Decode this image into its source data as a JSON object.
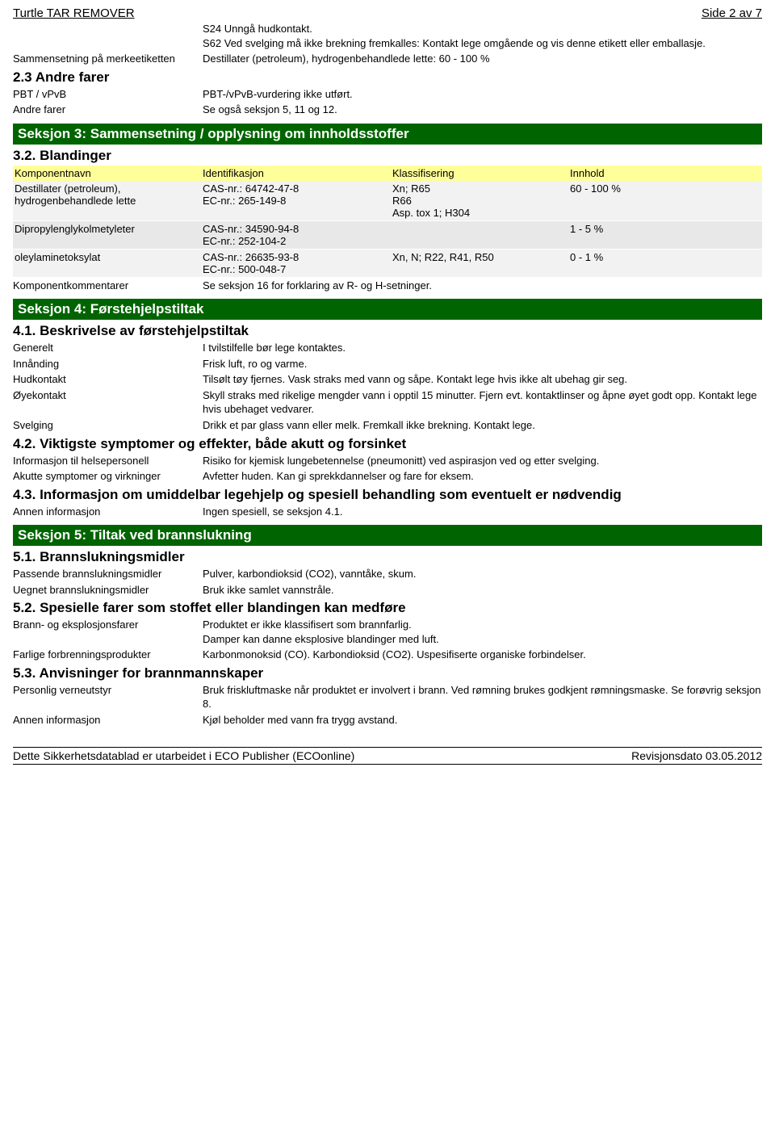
{
  "page_header": {
    "left": "Turtle TAR REMOVER",
    "right": "Side 2 av 7"
  },
  "safety_phrases": {
    "s24": "S24 Unngå hudkontakt.",
    "s62": "S62 Ved svelging må ikke brekning fremkalles: Kontakt lege omgående og vis denne etikett eller emballasje."
  },
  "composition_label": {
    "label": "Sammensetning på merkeetiketten",
    "value": "Destillater (petroleum), hydrogenbehandlede lette: 60 - 100 %"
  },
  "s2_3": {
    "title": "2.3 Andre farer",
    "rows": [
      {
        "label": "PBT / vPvB",
        "value": "PBT-/vPvB-vurdering ikke utført."
      },
      {
        "label": "Andre farer",
        "value": "Se også seksjon 5, 11 og 12."
      }
    ]
  },
  "section3": {
    "title": "Seksjon 3: Sammensetning / opplysning om innholdsstoffer",
    "sub": "3.2. Blandinger",
    "columns": [
      "Komponentnavn",
      "Identifikasjon",
      "Klassifisering",
      "Innhold"
    ],
    "rows": [
      {
        "name": "Destillater (petroleum), hydrogenbehandlede lette",
        "id": "CAS-nr.: 64742-47-8\nEC-nr.: 265-149-8",
        "class": "Xn; R65\nR66\nAsp. tox 1; H304",
        "content": "60 - 100 %"
      },
      {
        "name": "Dipropylenglykolmetyleter",
        "id": "CAS-nr.: 34590-94-8\nEC-nr.: 252-104-2",
        "class": "",
        "content": "1 - 5 %"
      },
      {
        "name": "oleylaminetoksylat",
        "id": "CAS-nr.: 26635-93-8\nEC-nr.: 500-048-7",
        "class": "Xn, N; R22, R41, R50",
        "content": "0 - 1 %"
      }
    ],
    "footer": {
      "label": "Komponentkommentarer",
      "value": "Se seksjon 16 for forklaring av R- og H-setninger."
    }
  },
  "section4": {
    "title": "Seksjon 4: Førstehjelpstiltak",
    "s4_1": {
      "title": "4.1. Beskrivelse av førstehjelpstiltak",
      "rows": [
        {
          "label": "Generelt",
          "value": "I tvilstilfelle bør lege kontaktes."
        },
        {
          "label": "Innånding",
          "value": "Frisk luft, ro og varme."
        },
        {
          "label": "Hudkontakt",
          "value": "Tilsølt tøy fjernes. Vask straks med vann og såpe. Kontakt lege hvis ikke alt ubehag gir seg."
        },
        {
          "label": "Øyekontakt",
          "value": "Skyll straks med rikelige mengder vann i opptil 15 minutter. Fjern evt. kontaktlinser og åpne øyet godt opp. Kontakt lege hvis ubehaget vedvarer."
        },
        {
          "label": "Svelging",
          "value": "Drikk et par glass vann eller melk. Fremkall ikke brekning. Kontakt lege."
        }
      ]
    },
    "s4_2": {
      "title": "4.2. Viktigste symptomer og effekter, både akutt og forsinket",
      "rows": [
        {
          "label": "Informasjon til helsepersonell",
          "value": "Risiko for kjemisk lungebetennelse (pneumonitt) ved aspirasjon ved og etter svelging."
        },
        {
          "label": "Akutte symptomer og virkninger",
          "value": "Avfetter huden. Kan gi sprekkdannelser og fare for eksem."
        }
      ]
    },
    "s4_3": {
      "title": "4.3. Informasjon om umiddelbar legehjelp og spesiell behandling som eventuelt er nødvendig",
      "rows": [
        {
          "label": "Annen informasjon",
          "value": "Ingen spesiell, se seksjon 4.1."
        }
      ]
    }
  },
  "section5": {
    "title": "Seksjon 5: Tiltak ved brannslukning",
    "s5_1": {
      "title": "5.1. Brannslukningsmidler",
      "rows": [
        {
          "label": "Passende brannslukningsmidler",
          "value": "Pulver, karbondioksid (CO2), vanntåke, skum."
        },
        {
          "label": "Uegnet brannslukningsmidler",
          "value": "Bruk ikke samlet vannstråle."
        }
      ]
    },
    "s5_2": {
      "title": "5.2. Spesielle farer som stoffet eller blandingen kan medføre",
      "rows": [
        {
          "label": "Brann- og eksplosjonsfarer",
          "value": "Produktet er ikke klassifisert som brannfarlig.\nDamper kan danne eksplosive blandinger med luft."
        },
        {
          "label": "Farlige forbrenningsprodukter",
          "value": "Karbonmonoksid (CO). Karbondioksid (CO2). Uspesifiserte organiske forbindelser."
        }
      ]
    },
    "s5_3": {
      "title": "5.3. Anvisninger for brannmannskaper",
      "rows": [
        {
          "label": "Personlig verneutstyr",
          "value": "Bruk friskluftmaske når produktet er involvert i brann. Ved rømning brukes godkjent rømningsmaske. Se forøvrig seksjon 8."
        },
        {
          "label": "Annen informasjon",
          "value": "Kjøl beholder med vann fra trygg avstand."
        }
      ]
    }
  },
  "footer": {
    "left": "Dette Sikkerhetsdatablad er utarbeidet i ECO Publisher (ECOonline)",
    "right": "Revisjonsdato 03.05.2012"
  }
}
